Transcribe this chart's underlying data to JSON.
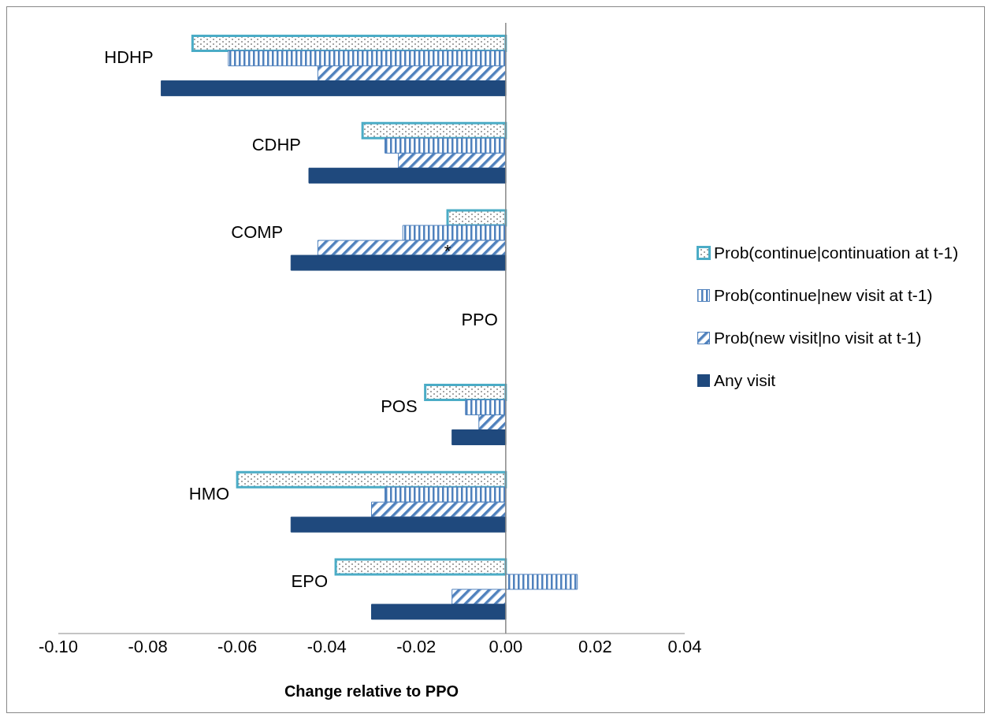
{
  "chart_data": {
    "type": "bar",
    "orientation": "horizontal",
    "xlabel": "Change relative to PPO",
    "categories": [
      "HDHP",
      "CDHP",
      "COMP",
      "PPO",
      "POS",
      "HMO",
      "EPO"
    ],
    "series": [
      {
        "name": "Prob(continue|continuation at t-1)",
        "color": "#4bacc6",
        "values": [
          -0.07,
          -0.032,
          -0.013,
          null,
          -0.018,
          -0.06,
          -0.038
        ]
      },
      {
        "name": "Prob(continue|new visit at t-1)",
        "color": "#4f81bd",
        "values": [
          -0.062,
          -0.027,
          -0.023,
          null,
          -0.009,
          -0.027,
          0.016
        ]
      },
      {
        "name": "Prob(new visit|no visit at t-1)",
        "color": "#4f81bd",
        "values": [
          -0.042,
          -0.024,
          -0.042,
          null,
          -0.006,
          -0.03,
          -0.012
        ]
      },
      {
        "name": "Any visit",
        "color": "#1f497d",
        "values": [
          -0.077,
          -0.044,
          -0.048,
          null,
          -0.012,
          -0.048,
          -0.03
        ]
      }
    ],
    "xlim": [
      -0.1,
      0.04
    ],
    "xticks": [
      {
        "value": -0.1,
        "label": "-0.10"
      },
      {
        "value": -0.08,
        "label": "-0.08"
      },
      {
        "value": -0.06,
        "label": "-0.06"
      },
      {
        "value": -0.04,
        "label": "-0.04"
      },
      {
        "value": -0.02,
        "label": "-0.02"
      },
      {
        "value": 0,
        "label": "0.00"
      },
      {
        "value": 0.02,
        "label": "0.02"
      },
      {
        "value": 0.04,
        "label": "0.04"
      }
    ],
    "annotations": [
      {
        "text": "*",
        "x": -0.013,
        "y": "COMP"
      }
    ],
    "legend": "right"
  }
}
